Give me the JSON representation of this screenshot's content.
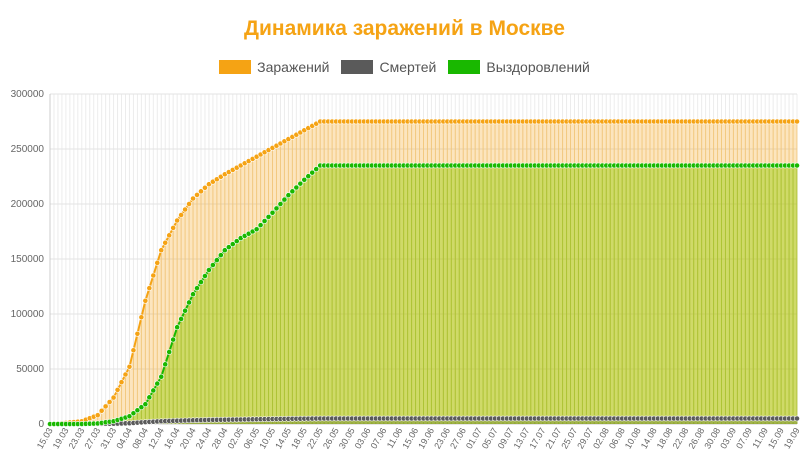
{
  "chart_data": {
    "type": "line",
    "title": "Динамика заражений в Москве",
    "xlabel": "",
    "ylabel": "",
    "ylim": [
      0,
      300000
    ],
    "y_ticks": [
      "0",
      "50000",
      "100000",
      "150000",
      "200000",
      "250000",
      "300000"
    ],
    "x_ticks": [
      "15.03",
      "19.03",
      "23.03",
      "27.03",
      "31.03",
      "04.04",
      "08.04",
      "12.04",
      "16.04",
      "20.04",
      "24.04",
      "28.04",
      "02.05",
      "06.05",
      "10.05",
      "14.05",
      "18.05",
      "22.05",
      "26.05",
      "30.05",
      "03.06",
      "07.06",
      "11.06",
      "15.06",
      "19.06",
      "23.06",
      "27.06",
      "01.07",
      "05.07",
      "09.07",
      "13.07",
      "17.07",
      "21.07",
      "25.07",
      "29.07",
      "02.08",
      "06.08",
      "10.08",
      "14.08",
      "18.08",
      "22.08",
      "26.08",
      "30.08",
      "03.09",
      "07.09",
      "11.09",
      "15.09",
      "19.09"
    ],
    "grid": true,
    "legend_position": "top",
    "series": [
      {
        "name": "Заражений",
        "color": "#f5a314",
        "values": [
          0,
          1000,
          2500,
          8000,
          24000,
          52000,
          112000,
          158000,
          185000,
          205000,
          218000,
          227000,
          235000,
          243000,
          251000,
          259000,
          267000,
          275000
        ]
      },
      {
        "name": "Смертей",
        "color": "#5a5a5a",
        "values": [
          0,
          0,
          0,
          100,
          250,
          700,
          1700,
          2500,
          3000,
          3400,
          3700,
          3900,
          4100,
          4300,
          4500,
          4700,
          4850,
          5000
        ]
      },
      {
        "name": "Выздоровлений",
        "color": "#19b800",
        "values": [
          0,
          0,
          0,
          500,
          2500,
          7000,
          18000,
          43000,
          88000,
          118000,
          140000,
          158000,
          169000,
          177000,
          192000,
          208000,
          222000,
          235000
        ]
      }
    ],
    "series_x_index": [
      0,
      4,
      8,
      12,
      16,
      20,
      24,
      28,
      32,
      36,
      40,
      44,
      48,
      52,
      56,
      60,
      64,
      68
    ]
  }
}
